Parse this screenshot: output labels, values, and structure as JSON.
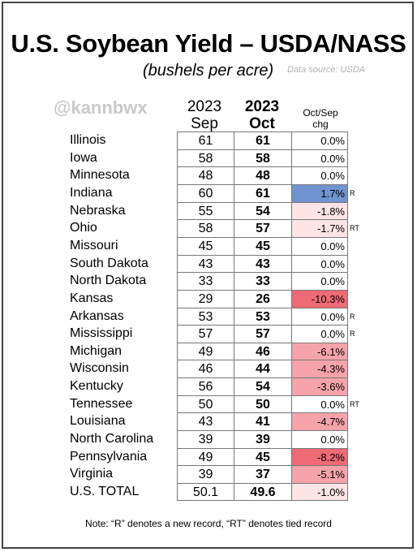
{
  "title": "U.S. Soybean Yield – USDA/NASS",
  "subtitle": "(bushels per acre)",
  "source": "Data source: USDA",
  "watermark": "@kannbwx",
  "note": "Note: “R” denotes a new record, “RT” denotes tied record",
  "colors": {
    "positive": "#6f94cf",
    "negative_light": "#fde4e6",
    "negative_mid": "#f5a3aa",
    "negative_strong": "#ee6a74",
    "border": "#777777"
  },
  "chart_data": {
    "type": "table",
    "columns": [
      {
        "line1": "2023",
        "line2": "Sep"
      },
      {
        "line1": "2023",
        "line2": "Oct"
      },
      {
        "line1": "Oct/Sep",
        "line2": "chg"
      }
    ],
    "rows": [
      {
        "state": "Illinois",
        "sep": "61",
        "oct": "61",
        "chg": "0.0%",
        "chg_value": 0.0,
        "flag": ""
      },
      {
        "state": "Iowa",
        "sep": "58",
        "oct": "58",
        "chg": "0.0%",
        "chg_value": 0.0,
        "flag": ""
      },
      {
        "state": "Minnesota",
        "sep": "48",
        "oct": "48",
        "chg": "0.0%",
        "chg_value": 0.0,
        "flag": ""
      },
      {
        "state": "Indiana",
        "sep": "60",
        "oct": "61",
        "chg": "1.7%",
        "chg_value": 1.7,
        "flag": "R"
      },
      {
        "state": "Nebraska",
        "sep": "55",
        "oct": "54",
        "chg": "-1.8%",
        "chg_value": -1.8,
        "flag": ""
      },
      {
        "state": "Ohio",
        "sep": "58",
        "oct": "57",
        "chg": "-1.7%",
        "chg_value": -1.7,
        "flag": "RT"
      },
      {
        "state": "Missouri",
        "sep": "45",
        "oct": "45",
        "chg": "0.0%",
        "chg_value": 0.0,
        "flag": ""
      },
      {
        "state": "South Dakota",
        "sep": "43",
        "oct": "43",
        "chg": "0.0%",
        "chg_value": 0.0,
        "flag": ""
      },
      {
        "state": "North Dakota",
        "sep": "33",
        "oct": "33",
        "chg": "0.0%",
        "chg_value": 0.0,
        "flag": ""
      },
      {
        "state": "Kansas",
        "sep": "29",
        "oct": "26",
        "chg": "-10.3%",
        "chg_value": -10.3,
        "flag": ""
      },
      {
        "state": "Arkansas",
        "sep": "53",
        "oct": "53",
        "chg": "0.0%",
        "chg_value": 0.0,
        "flag": "R"
      },
      {
        "state": "Mississippi",
        "sep": "57",
        "oct": "57",
        "chg": "0.0%",
        "chg_value": 0.0,
        "flag": "R"
      },
      {
        "state": "Michigan",
        "sep": "49",
        "oct": "46",
        "chg": "-6.1%",
        "chg_value": -6.1,
        "flag": ""
      },
      {
        "state": "Wisconsin",
        "sep": "46",
        "oct": "44",
        "chg": "-4.3%",
        "chg_value": -4.3,
        "flag": ""
      },
      {
        "state": "Kentucky",
        "sep": "56",
        "oct": "54",
        "chg": "-3.6%",
        "chg_value": -3.6,
        "flag": ""
      },
      {
        "state": "Tennessee",
        "sep": "50",
        "oct": "50",
        "chg": "0.0%",
        "chg_value": 0.0,
        "flag": "RT"
      },
      {
        "state": "Louisiana",
        "sep": "43",
        "oct": "41",
        "chg": "-4.7%",
        "chg_value": -4.7,
        "flag": ""
      },
      {
        "state": "North Carolina",
        "sep": "39",
        "oct": "39",
        "chg": "0.0%",
        "chg_value": 0.0,
        "flag": ""
      },
      {
        "state": "Pennsylvania",
        "sep": "49",
        "oct": "45",
        "chg": "-8.2%",
        "chg_value": -8.2,
        "flag": ""
      },
      {
        "state": "Virginia",
        "sep": "39",
        "oct": "37",
        "chg": "-5.1%",
        "chg_value": -5.1,
        "flag": ""
      },
      {
        "state": "U.S. TOTAL",
        "sep": "50.1",
        "oct": "49.6",
        "chg": "-1.0%",
        "chg_value": -1.0,
        "flag": ""
      }
    ]
  }
}
